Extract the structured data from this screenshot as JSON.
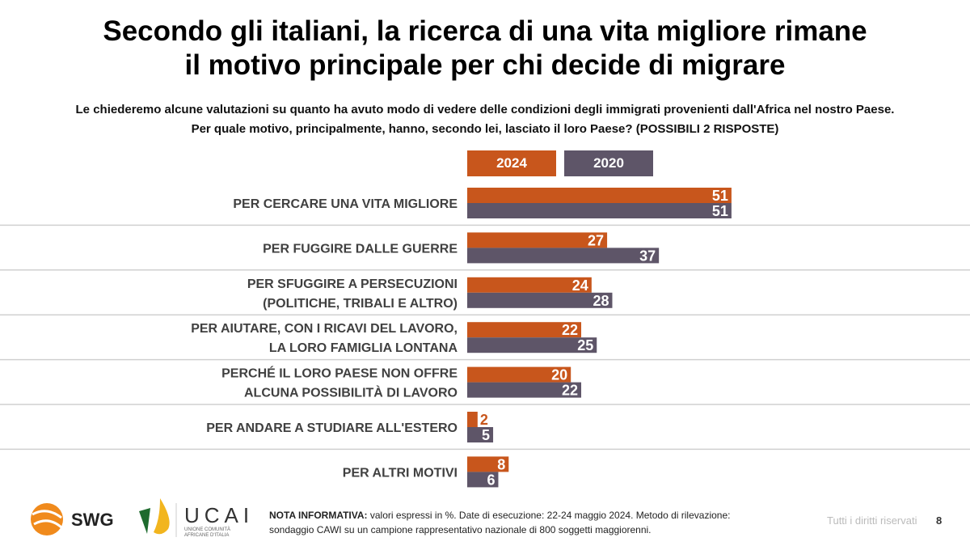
{
  "title_lines": [
    "Secondo gli italiani, la ricerca di una vita migliore rimane",
    "il motivo principale per chi decide di migrare"
  ],
  "subtitle_lines": [
    "Le chiederemo alcune valutazioni su quanto ha avuto modo di vedere delle condizioni degli immigrati provenienti dall'Africa nel nostro Paese.",
    "Per quale motivo, principalmente, hanno, secondo lei, lasciato il loro Paese? (POSSIBILI 2 RISPOSTE)"
  ],
  "chart_data": {
    "type": "bar",
    "orientation": "horizontal",
    "legend_placement": "top",
    "categories": [
      [
        "PER CERCARE UNA VITA MIGLIORE"
      ],
      [
        "PER FUGGIRE DALLE GUERRE"
      ],
      [
        "PER SFUGGIRE A PERSECUZIONI",
        "(POLITICHE, TRIBALI E ALTRO)"
      ],
      [
        "PER AIUTARE, CON I RICAVI DEL LAVORO,",
        "LA LORO FAMIGLIA LONTANA"
      ],
      [
        "PERCHÉ IL LORO PAESE NON OFFRE",
        "ALCUNA POSSIBILITÀ DI LAVORO"
      ],
      [
        "PER ANDARE A STUDIARE ALL'ESTERO"
      ],
      [
        "PER ALTRI MOTIVI"
      ]
    ],
    "series": [
      {
        "name": "2024",
        "color": "#C8561C",
        "values": [
          51,
          27,
          24,
          22,
          20,
          2,
          8
        ]
      },
      {
        "name": "2020",
        "color": "#5E5568",
        "values": [
          51,
          37,
          28,
          25,
          22,
          5,
          6
        ]
      }
    ]
  },
  "footer": {
    "note_bold": "NOTA INFORMATIVA:",
    "note_line1": " valori espressi in %. Date di esecuzione: 22-24 maggio 2024. Metodo di rilevazione:",
    "note_line2": "sondaggio CAWI su un campione rappresentativo nazionale di 800 soggetti maggiorenni.",
    "rights": "Tutti i diritti riservati",
    "page": "8",
    "logo_swg": "SWG",
    "logo_ucai": "UCAI",
    "logo_ucai_sub": [
      "UNIONE COMUNITÀ",
      "AFRICANE D'ITALIA"
    ]
  }
}
